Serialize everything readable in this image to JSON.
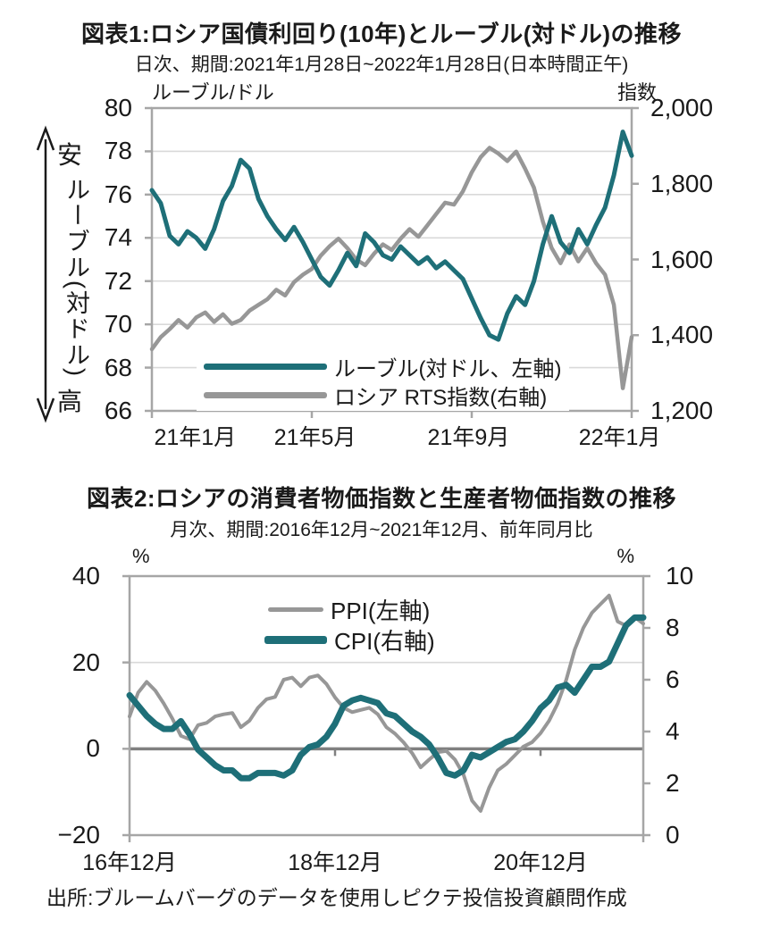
{
  "colors": {
    "teal": "#1E6F78",
    "gray": "#979797",
    "grid": "#d9d9d9",
    "border": "#a6a6a6",
    "zero_axis": "#808080",
    "text": "#1a1a1a"
  },
  "figure1": {
    "title": "図表1:ロシア国債利回り(10年)とルーブル(対ドル)の推移",
    "subtitle": "日次、期間:2021年1月28日~2022年1月28日(日本時間正午)",
    "left_unit": "ルーブル/ドル",
    "right_unit": "指数",
    "arrow_top_label": "安",
    "arrow_axis_label": "ルーブル(対ドル)",
    "arrow_bottom_label": "高",
    "left_ticks": [
      "80",
      "78",
      "76",
      "74",
      "72",
      "70",
      "68",
      "66"
    ],
    "right_ticks": [
      "2,000",
      "1,800",
      "1,600",
      "1,400",
      "1,200"
    ],
    "x_labels": [
      "21年1月",
      "21年5月",
      "21年9月",
      "22年1月"
    ],
    "legend": [
      {
        "label": "ルーブル(対ドル、左軸)",
        "color": "#1E6F78"
      },
      {
        "label": "ロシア RTS指数(右軸)",
        "color": "#979797"
      }
    ]
  },
  "figure2": {
    "title": "図表2:ロシアの消費者物価指数と生産者物価指数の推移",
    "subtitle": "月次、期間:2016年12月~2021年12月、前年同月比",
    "left_unit": "%",
    "right_unit": "%",
    "left_ticks": [
      "40",
      "20",
      "0",
      "−20"
    ],
    "right_ticks": [
      "10",
      "8",
      "6",
      "4",
      "2",
      "0"
    ],
    "x_labels": [
      "16年12月",
      "18年12月",
      "20年12月"
    ],
    "legend": [
      {
        "label": "PPI(左軸)",
        "color": "#979797"
      },
      {
        "label": "CPI(右軸)",
        "color": "#1E6F78"
      }
    ]
  },
  "source": "出所:ブルームバーグのデータを使用しピクテ投信投資顧問作成",
  "chart_data": [
    {
      "type": "line",
      "title": "図表1:ロシア国債利回り(10年)とルーブル(対ドル)の推移",
      "frequency": "daily",
      "period": "2021-01-28 〜 2022-01-28 (日本時間正午)",
      "x_ticks": [
        "21年1月",
        "21年5月",
        "21年9月",
        "22年1月"
      ],
      "left_ylim": [
        66,
        80
      ],
      "right_ylim": [
        1200,
        2000
      ],
      "left_axis_label": "ルーブル/ドル",
      "right_axis_label": "指数",
      "grid": "horizontal",
      "legend_position": "inside-bottom-left",
      "series": [
        {
          "name": "ルーブル(対ドル、左軸)",
          "axis": "left",
          "color": "#1E6F78",
          "z": 2,
          "values": [
            76.2,
            75.6,
            74.1,
            73.7,
            74.3,
            74.0,
            73.5,
            74.4,
            75.7,
            76.4,
            77.6,
            77.2,
            75.8,
            75.0,
            74.4,
            73.9,
            74.5,
            73.8,
            73.0,
            72.2,
            71.8,
            72.5,
            73.3,
            72.7,
            74.2,
            73.8,
            73.2,
            73.0,
            73.6,
            73.2,
            72.8,
            73.1,
            72.6,
            72.9,
            72.5,
            72.1,
            71.2,
            70.3,
            69.5,
            69.3,
            70.5,
            71.3,
            70.9,
            72.0,
            73.7,
            75.0,
            73.8,
            73.3,
            74.4,
            73.7,
            74.6,
            75.4,
            76.9,
            78.9,
            77.8
          ]
        },
        {
          "name": "ロシア RTS指数(右軸)",
          "axis": "right",
          "color": "#979797",
          "z": 1,
          "values": [
            1363,
            1395,
            1416,
            1440,
            1420,
            1447,
            1460,
            1435,
            1455,
            1430,
            1440,
            1465,
            1480,
            1495,
            1520,
            1505,
            1540,
            1560,
            1575,
            1610,
            1635,
            1655,
            1630,
            1600,
            1585,
            1615,
            1640,
            1625,
            1655,
            1680,
            1660,
            1690,
            1720,
            1750,
            1745,
            1780,
            1830,
            1870,
            1895,
            1880,
            1860,
            1885,
            1840,
            1790,
            1700,
            1630,
            1590,
            1640,
            1595,
            1630,
            1590,
            1560,
            1480,
            1260,
            1395
          ]
        }
      ]
    },
    {
      "type": "line",
      "title": "図表2:ロシアの消費者物価指数と生産者物価指数の推移",
      "frequency": "monthly",
      "period": "2016-12 〜 2021-12 前年同月比",
      "x_ticks": [
        "16年12月",
        "18年12月",
        "20年12月"
      ],
      "left_ylim": [
        -20,
        40
      ],
      "right_ylim": [
        0,
        10
      ],
      "left_axis_label": "%",
      "right_axis_label": "%",
      "grid": "horizontal",
      "zero_line": "left-axis-0",
      "legend_position": "inside-top-center",
      "series": [
        {
          "name": "PPI(左軸)",
          "axis": "left",
          "color": "#979797",
          "z": 1,
          "values": [
            7.5,
            13.0,
            15.5,
            13.5,
            10.5,
            7.0,
            3.0,
            2.2,
            5.5,
            6.0,
            7.5,
            8.0,
            8.3,
            5.0,
            6.5,
            9.5,
            11.5,
            12.0,
            16.0,
            16.5,
            14.5,
            16.5,
            17.0,
            15.0,
            11.9,
            9.5,
            8.5,
            9.0,
            9.5,
            8.0,
            5.0,
            3.5,
            1.5,
            -1.0,
            -4.3,
            -2.5,
            -0.8,
            -0.5,
            -2.5,
            -6.0,
            -12.0,
            -14.4,
            -9.0,
            -5.0,
            -3.5,
            -1.5,
            0.5,
            1.5,
            3.6,
            6.5,
            10.5,
            16.0,
            23.0,
            28.0,
            31.5,
            33.5,
            35.5,
            29.5,
            28.5,
            30.5,
            29.0
          ]
        },
        {
          "name": "CPI(右軸)",
          "axis": "right",
          "color": "#1E6F78",
          "z": 2,
          "values": [
            5.4,
            5.0,
            4.6,
            4.3,
            4.1,
            4.1,
            4.4,
            3.9,
            3.3,
            3.0,
            2.7,
            2.5,
            2.5,
            2.2,
            2.2,
            2.4,
            2.4,
            2.4,
            2.3,
            2.5,
            3.1,
            3.4,
            3.5,
            3.8,
            4.3,
            5.0,
            5.2,
            5.3,
            5.2,
            5.1,
            4.7,
            4.6,
            4.3,
            4.0,
            3.8,
            3.5,
            3.0,
            2.4,
            2.3,
            2.5,
            3.1,
            3.0,
            3.2,
            3.4,
            3.6,
            3.7,
            4.0,
            4.4,
            4.9,
            5.2,
            5.7,
            5.8,
            5.5,
            6.0,
            6.5,
            6.5,
            6.7,
            7.4,
            8.1,
            8.4,
            8.4
          ]
        }
      ]
    }
  ]
}
